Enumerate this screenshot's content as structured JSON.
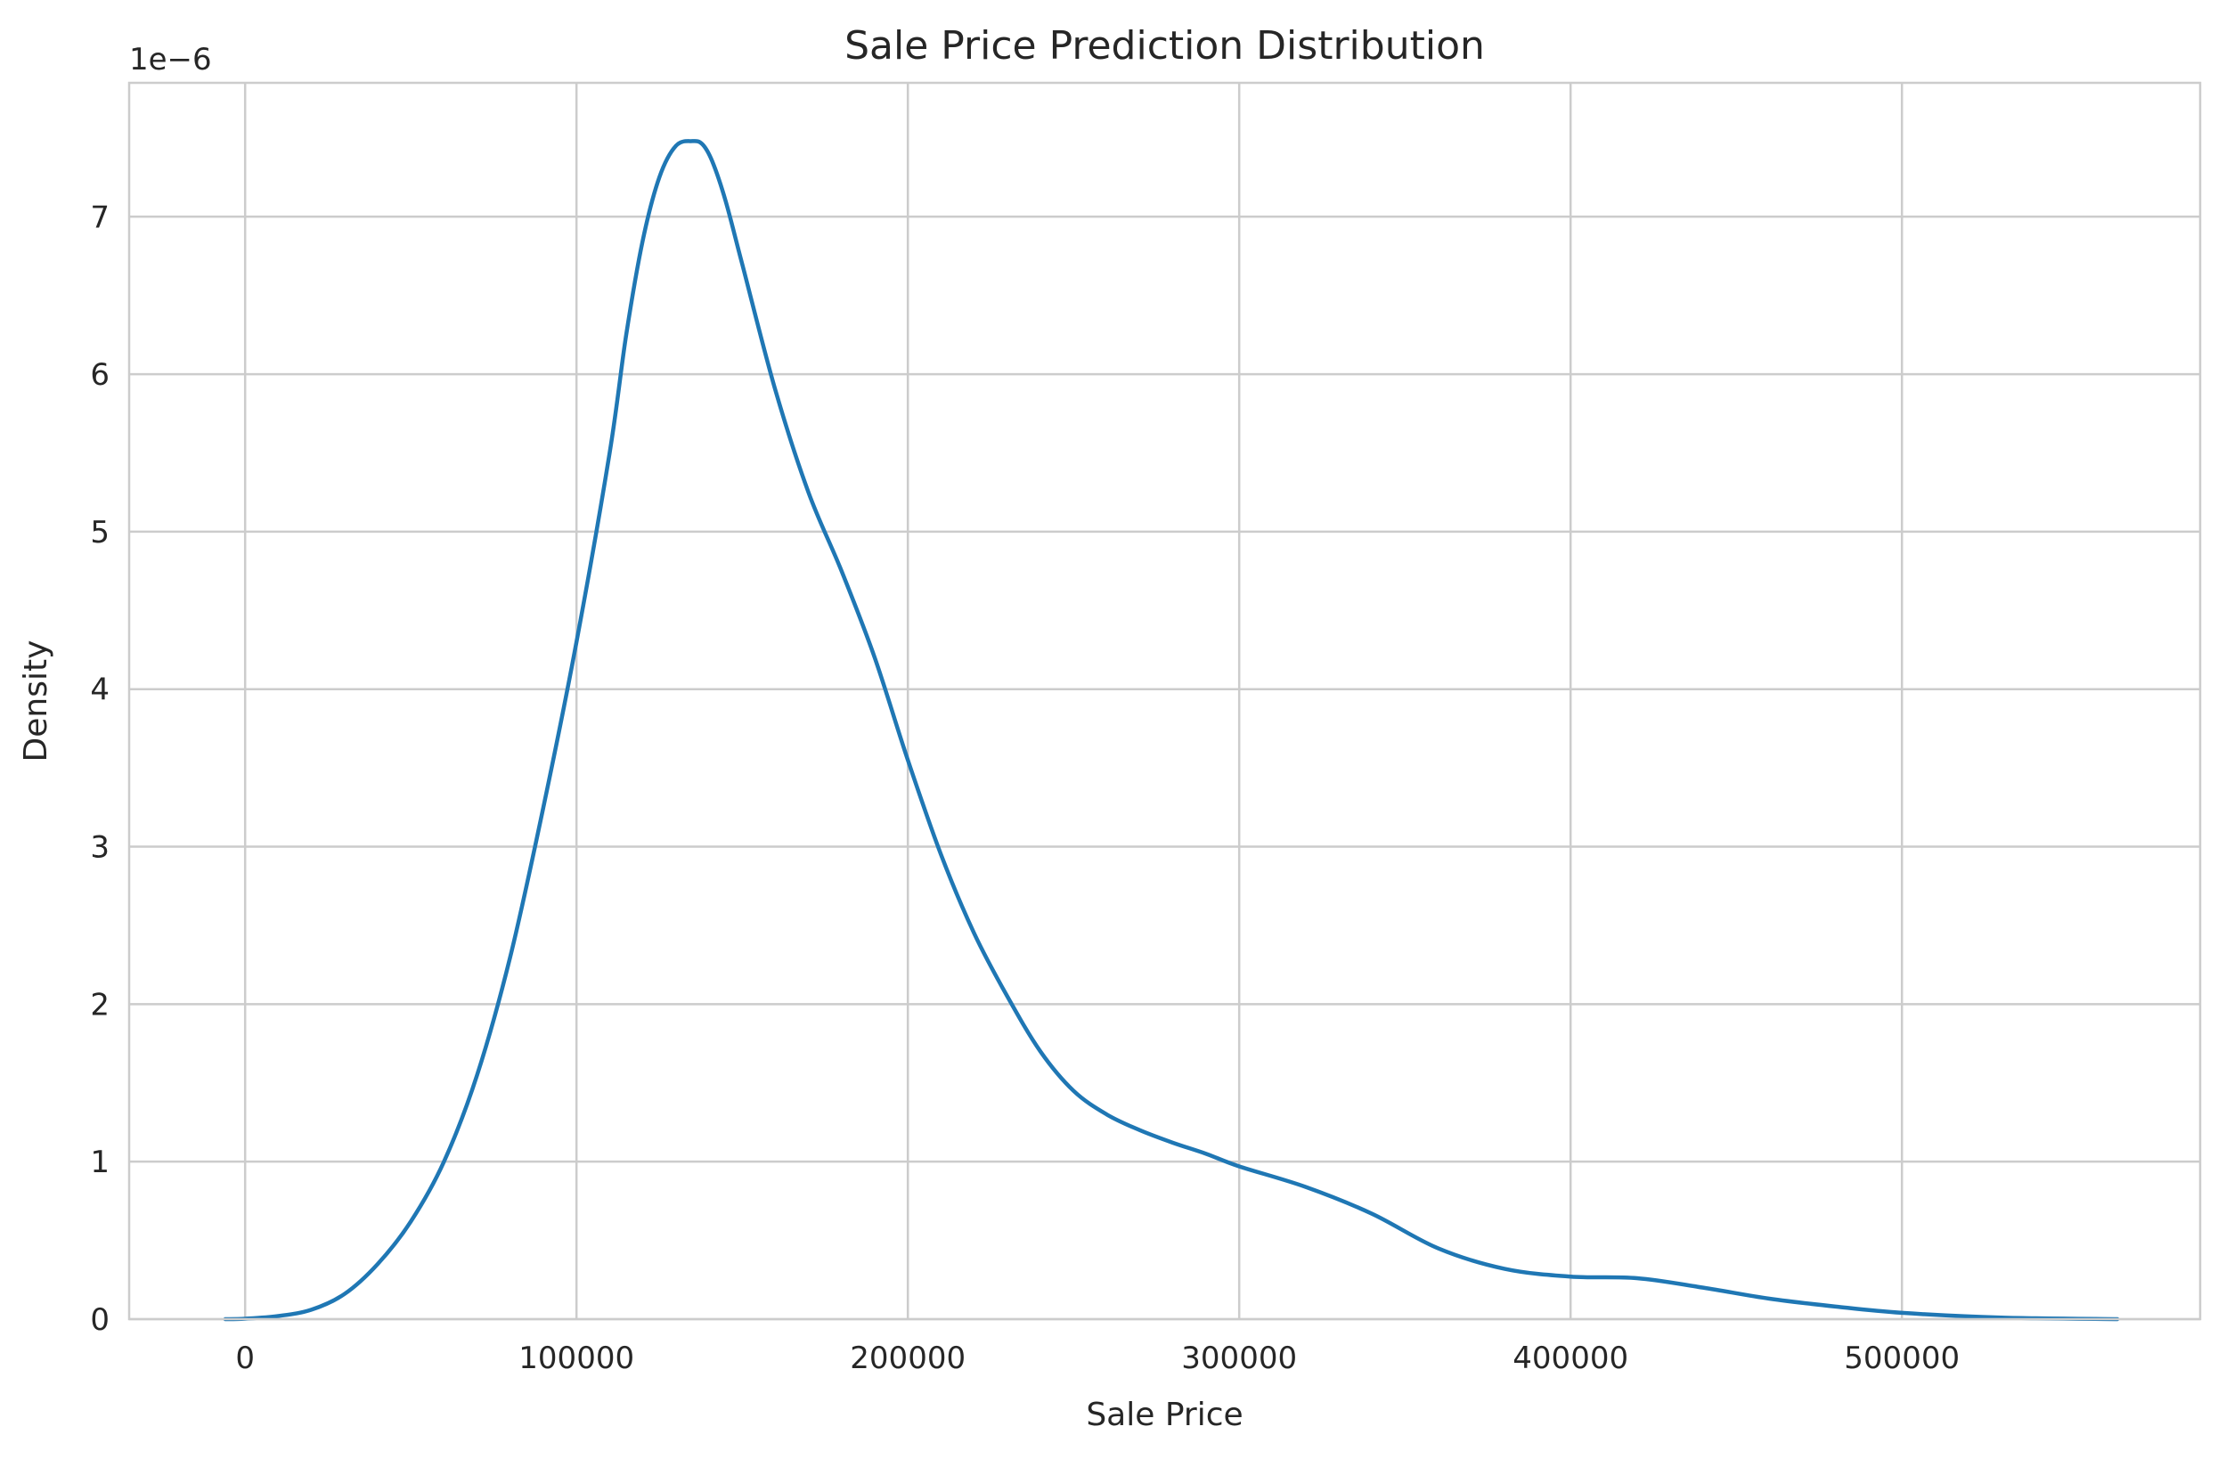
{
  "chart_data": {
    "type": "line",
    "title": "Sale Price Prediction Distribution",
    "xlabel": "Sale Price",
    "ylabel": "Density",
    "y_offset_label": "1e−6",
    "xlim": [
      -35000,
      590000
    ],
    "ylim": [
      0,
      7.85
    ],
    "x_ticks": [
      0,
      100000,
      200000,
      300000,
      400000,
      500000
    ],
    "x_tick_labels": [
      "0",
      "100000",
      "200000",
      "300000",
      "400000",
      "500000"
    ],
    "y_ticks": [
      0,
      1,
      2,
      3,
      4,
      5,
      6,
      7
    ],
    "y_tick_labels": [
      "0",
      "1",
      "2",
      "3",
      "4",
      "5",
      "6",
      "7"
    ],
    "grid": true,
    "series": [
      {
        "color": "#1f77b4",
        "x": [
          -6000,
          0,
          10000,
          20000,
          30000,
          40000,
          50000,
          60000,
          70000,
          80000,
          90000,
          100000,
          110000,
          115000,
          120000,
          125000,
          130000,
          135000,
          138000,
          141000,
          145000,
          150000,
          160000,
          170000,
          180000,
          190000,
          200000,
          210000,
          220000,
          230000,
          240000,
          250000,
          260000,
          270000,
          280000,
          290000,
          300000,
          320000,
          340000,
          360000,
          380000,
          400000,
          420000,
          440000,
          460000,
          480000,
          500000,
          530000,
          565000
        ],
        "y": [
          0.0,
          0.003,
          0.02,
          0.06,
          0.16,
          0.35,
          0.62,
          1.0,
          1.55,
          2.3,
          3.25,
          4.3,
          5.5,
          6.25,
          6.85,
          7.25,
          7.45,
          7.48,
          7.46,
          7.35,
          7.1,
          6.7,
          5.9,
          5.25,
          4.75,
          4.2,
          3.55,
          2.95,
          2.45,
          2.05,
          1.7,
          1.45,
          1.3,
          1.2,
          1.12,
          1.05,
          0.97,
          0.84,
          0.67,
          0.45,
          0.32,
          0.27,
          0.26,
          0.2,
          0.13,
          0.08,
          0.04,
          0.01,
          0.0
        ]
      }
    ]
  }
}
